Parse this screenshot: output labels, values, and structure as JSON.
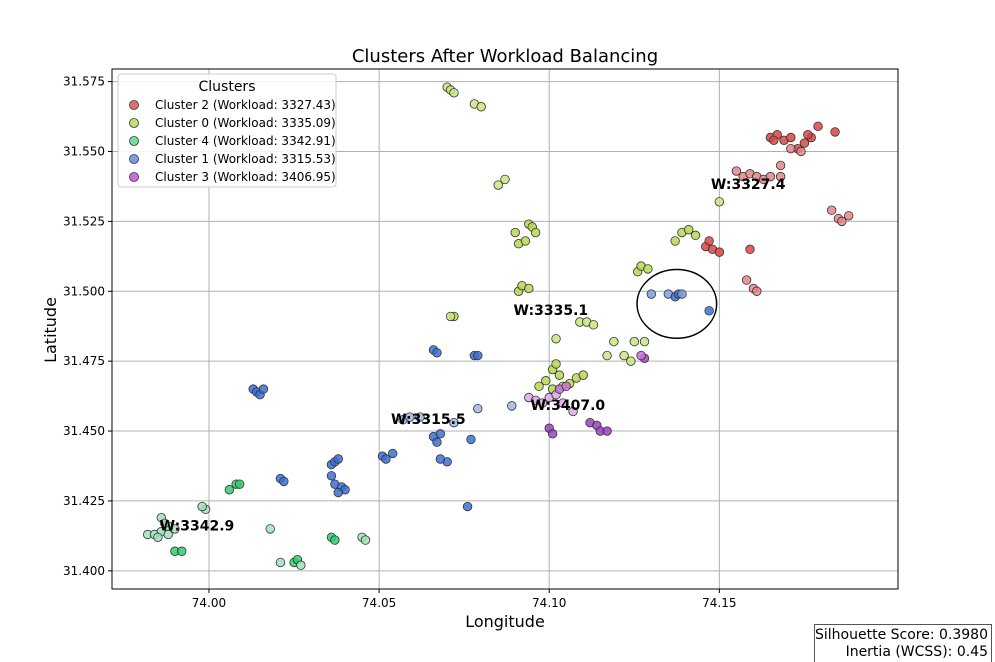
{
  "chart_data": {
    "type": "scatter",
    "title": "Clusters After Workload Balancing",
    "xlabel": "Longitude",
    "ylabel": "Latitude",
    "xlim": [
      73.9715,
      74.2025
    ],
    "ylim": [
      31.3935,
      31.5795
    ],
    "xticks": [
      "74.00",
      "74.05",
      "74.10",
      "74.15"
    ],
    "xtick_values": [
      74.0,
      74.05,
      74.1,
      74.15
    ],
    "yticks": [
      "31.400",
      "31.425",
      "31.450",
      "31.475",
      "31.500",
      "31.525",
      "31.550",
      "31.575"
    ],
    "ytick_values": [
      31.4,
      31.425,
      31.45,
      31.475,
      31.5,
      31.525,
      31.55,
      31.575
    ],
    "grid": true,
    "legend": {
      "title": "Clusters",
      "placement": "upper-left",
      "entries": [
        {
          "label": "Cluster 2 (Workload: 3327.43)",
          "color": "#e07070"
        },
        {
          "label": "Cluster 0 (Workload: 3335.09)",
          "color": "#c2e070"
        },
        {
          "label": "Cluster 4 (Workload: 3342.91)",
          "color": "#70e0a0"
        },
        {
          "label": "Cluster 1 (Workload: 3315.53)",
          "color": "#7a9ee0"
        },
        {
          "label": "Cluster 3 (Workload: 3406.95)",
          "color": "#cc70dd"
        }
      ]
    },
    "series": [
      {
        "name": "Cluster 2 (Workload: 3327.43)",
        "points": [
          [
            74.165,
            31.555,
            "#d94444"
          ],
          [
            74.167,
            31.556,
            "#d94444"
          ],
          [
            74.169,
            31.554,
            "#d94444"
          ],
          [
            74.171,
            31.555,
            "#d94444"
          ],
          [
            74.173,
            31.551,
            "#d94444"
          ],
          [
            74.175,
            31.553,
            "#d94444"
          ],
          [
            74.177,
            31.555,
            "#d94444"
          ],
          [
            74.179,
            31.559,
            "#d94444"
          ],
          [
            74.184,
            31.557,
            "#d94444"
          ],
          [
            74.176,
            31.556,
            "#d94444"
          ],
          [
            74.166,
            31.554,
            "#d94444"
          ],
          [
            74.171,
            31.551,
            "#e58585"
          ],
          [
            74.174,
            31.55,
            "#e58585"
          ],
          [
            74.168,
            31.541,
            "#e58585"
          ],
          [
            74.155,
            31.543,
            "#e58585"
          ],
          [
            74.157,
            31.541,
            "#e58585"
          ],
          [
            74.159,
            31.542,
            "#e58585"
          ],
          [
            74.161,
            31.541,
            "#e58585"
          ],
          [
            74.163,
            31.54,
            "#e58585"
          ],
          [
            74.165,
            31.541,
            "#e58585"
          ],
          [
            74.168,
            31.545,
            "#e58585"
          ],
          [
            74.183,
            31.529,
            "#e58585"
          ],
          [
            74.185,
            31.526,
            "#e58585"
          ],
          [
            74.186,
            31.525,
            "#e58585"
          ],
          [
            74.188,
            31.527,
            "#e58585"
          ],
          [
            74.146,
            31.516,
            "#d94444"
          ],
          [
            74.147,
            31.518,
            "#d94444"
          ],
          [
            74.148,
            31.515,
            "#d94444"
          ],
          [
            74.15,
            31.514,
            "#d94444"
          ],
          [
            74.159,
            31.515,
            "#d94444"
          ],
          [
            74.158,
            31.504,
            "#e58585"
          ],
          [
            74.16,
            31.501,
            "#e58585"
          ],
          [
            74.161,
            31.5,
            "#e58585"
          ]
        ]
      },
      {
        "name": "Cluster 0 (Workload: 3335.09)",
        "points": [
          [
            74.07,
            31.573,
            "#c8e680"
          ],
          [
            74.071,
            31.572,
            "#c8e680"
          ],
          [
            74.072,
            31.571,
            "#c8e680"
          ],
          [
            74.078,
            31.567,
            "#c8e680"
          ],
          [
            74.08,
            31.566,
            "#c8e680"
          ],
          [
            74.085,
            31.538,
            "#c8e680"
          ],
          [
            74.087,
            31.54,
            "#c8e680"
          ],
          [
            74.09,
            31.521,
            "#b5d84e"
          ],
          [
            74.091,
            31.517,
            "#b5d84e"
          ],
          [
            74.093,
            31.518,
            "#b5d84e"
          ],
          [
            74.094,
            31.524,
            "#b5d84e"
          ],
          [
            74.095,
            31.523,
            "#b5d84e"
          ],
          [
            74.096,
            31.521,
            "#b5d84e"
          ],
          [
            74.091,
            31.5,
            "#b5d84e"
          ],
          [
            74.092,
            31.502,
            "#b5d84e"
          ],
          [
            74.094,
            31.501,
            "#b5d84e"
          ],
          [
            74.072,
            31.491,
            "#b5d84e"
          ],
          [
            74.071,
            31.491,
            "#c8e680"
          ],
          [
            74.109,
            31.489,
            "#c8e680"
          ],
          [
            74.111,
            31.489,
            "#c8e680"
          ],
          [
            74.113,
            31.488,
            "#c8e680"
          ],
          [
            74.102,
            31.483,
            "#c8e680"
          ],
          [
            74.117,
            31.477,
            "#c8e680"
          ],
          [
            74.119,
            31.482,
            "#c8e680"
          ],
          [
            74.122,
            31.477,
            "#c8e680"
          ],
          [
            74.124,
            31.475,
            "#c8e680"
          ],
          [
            74.125,
            31.482,
            "#c8e680"
          ],
          [
            74.128,
            31.482,
            "#c8e680"
          ],
          [
            74.097,
            31.466,
            "#b5d84e"
          ],
          [
            74.099,
            31.468,
            "#b5d84e"
          ],
          [
            74.101,
            31.472,
            "#b5d84e"
          ],
          [
            74.102,
            31.474,
            "#b5d84e"
          ],
          [
            74.103,
            31.47,
            "#b5d84e"
          ],
          [
            74.104,
            31.466,
            "#b5d84e"
          ],
          [
            74.106,
            31.467,
            "#b5d84e"
          ],
          [
            74.108,
            31.469,
            "#b5d84e"
          ],
          [
            74.11,
            31.47,
            "#b5d84e"
          ],
          [
            74.101,
            31.465,
            "#b5d84e"
          ],
          [
            74.126,
            31.507,
            "#b5d84e"
          ],
          [
            74.127,
            31.509,
            "#b5d84e"
          ],
          [
            74.129,
            31.508,
            "#b5d84e"
          ],
          [
            74.137,
            31.518,
            "#b5d84e"
          ],
          [
            74.139,
            31.521,
            "#b5d84e"
          ],
          [
            74.141,
            31.522,
            "#b5d84e"
          ],
          [
            74.143,
            31.52,
            "#b5d84e"
          ],
          [
            74.15,
            31.532,
            "#c8e680"
          ]
        ]
      },
      {
        "name": "Cluster 4 (Workload: 3342.91)",
        "points": [
          [
            73.982,
            31.413,
            "#9fe0bb"
          ],
          [
            73.984,
            31.413,
            "#9fe0bb"
          ],
          [
            73.986,
            31.414,
            "#9fe0bb"
          ],
          [
            73.988,
            31.413,
            "#9fe0bb"
          ],
          [
            73.99,
            31.415,
            "#9fe0bb"
          ],
          [
            73.986,
            31.419,
            "#9fe0bb"
          ],
          [
            73.988,
            31.416,
            "#9fe0bb"
          ],
          [
            73.985,
            31.412,
            "#9fe0bb"
          ],
          [
            73.987,
            31.417,
            "#9fe0bb"
          ],
          [
            73.99,
            31.407,
            "#2ecc71"
          ],
          [
            73.992,
            31.407,
            "#2ecc71"
          ],
          [
            73.999,
            31.422,
            "#9fe0bb"
          ],
          [
            73.998,
            31.423,
            "#9fe0bb"
          ],
          [
            74.006,
            31.429,
            "#2ecc71"
          ],
          [
            74.008,
            31.431,
            "#2ecc71"
          ],
          [
            74.009,
            31.431,
            "#2ecc71"
          ],
          [
            74.018,
            31.415,
            "#9fe0bb"
          ],
          [
            74.021,
            31.403,
            "#9fe0bb"
          ],
          [
            74.025,
            31.403,
            "#2ecc71"
          ],
          [
            74.026,
            31.404,
            "#2ecc71"
          ],
          [
            74.027,
            31.402,
            "#9fe0bb"
          ],
          [
            74.036,
            31.412,
            "#2ecc71"
          ],
          [
            74.037,
            31.411,
            "#2ecc71"
          ],
          [
            74.045,
            31.412,
            "#9fe0bb"
          ],
          [
            74.046,
            31.411,
            "#9fe0bb"
          ]
        ]
      },
      {
        "name": "Cluster 1 (Workload: 3315.53)",
        "points": [
          [
            74.013,
            31.465,
            "#3b6fd4"
          ],
          [
            74.014,
            31.464,
            "#3b6fd4"
          ],
          [
            74.015,
            31.463,
            "#3b6fd4"
          ],
          [
            74.016,
            31.465,
            "#3b6fd4"
          ],
          [
            74.021,
            31.433,
            "#3b6fd4"
          ],
          [
            74.022,
            31.432,
            "#3b6fd4"
          ],
          [
            74.036,
            31.438,
            "#3b6fd4"
          ],
          [
            74.037,
            31.439,
            "#3b6fd4"
          ],
          [
            74.038,
            31.44,
            "#3b6fd4"
          ],
          [
            74.036,
            31.434,
            "#3b6fd4"
          ],
          [
            74.037,
            31.431,
            "#3b6fd4"
          ],
          [
            74.039,
            31.43,
            "#3b6fd4"
          ],
          [
            74.04,
            31.429,
            "#3b6fd4"
          ],
          [
            74.038,
            31.428,
            "#3b6fd4"
          ],
          [
            74.051,
            31.441,
            "#3b6fd4"
          ],
          [
            74.052,
            31.44,
            "#3b6fd4"
          ],
          [
            74.054,
            31.442,
            "#3b6fd4"
          ],
          [
            74.066,
            31.479,
            "#3b6fd4"
          ],
          [
            74.067,
            31.478,
            "#3b6fd4"
          ],
          [
            74.078,
            31.477,
            "#3b6fd4"
          ],
          [
            74.079,
            31.477,
            "#3b6fd4"
          ],
          [
            74.057,
            31.454,
            "#9db7ea"
          ],
          [
            74.059,
            31.455,
            "#9db7ea"
          ],
          [
            74.062,
            31.455,
            "#9db7ea"
          ],
          [
            74.066,
            31.448,
            "#3b6fd4"
          ],
          [
            74.067,
            31.446,
            "#3b6fd4"
          ],
          [
            74.068,
            31.449,
            "#3b6fd4"
          ],
          [
            74.07,
            31.439,
            "#3b6fd4"
          ],
          [
            74.068,
            31.44,
            "#3b6fd4"
          ],
          [
            74.072,
            31.453,
            "#9db7ea"
          ],
          [
            74.077,
            31.447,
            "#3b6fd4"
          ],
          [
            74.076,
            31.423,
            "#3b6fd4"
          ],
          [
            74.079,
            31.458,
            "#9db7ea"
          ],
          [
            74.089,
            31.459,
            "#9db7ea"
          ],
          [
            74.13,
            31.499,
            "#7a9ee0"
          ],
          [
            74.135,
            31.499,
            "#7a9ee0"
          ],
          [
            74.137,
            31.498,
            "#3b6fd4"
          ],
          [
            74.138,
            31.499,
            "#3b6fd4"
          ],
          [
            74.139,
            31.499,
            "#7a9ee0"
          ],
          [
            74.147,
            31.493,
            "#3b6fd4"
          ]
        ]
      },
      {
        "name": "Cluster 3 (Workload: 3406.95)",
        "points": [
          [
            74.094,
            31.462,
            "#d9a8e6"
          ],
          [
            74.096,
            31.461,
            "#d9a8e6"
          ],
          [
            74.098,
            31.46,
            "#d9a8e6"
          ],
          [
            74.1,
            31.462,
            "#d9a8e6"
          ],
          [
            74.102,
            31.463,
            "#d9a8e6"
          ],
          [
            74.104,
            31.46,
            "#d9a8e6"
          ],
          [
            74.103,
            31.465,
            "#cc70dd"
          ],
          [
            74.105,
            31.466,
            "#cc70dd"
          ],
          [
            74.107,
            31.457,
            "#d9a8e6"
          ],
          [
            74.1,
            31.451,
            "#9b3fbf"
          ],
          [
            74.101,
            31.449,
            "#9b3fbf"
          ],
          [
            74.112,
            31.453,
            "#9b3fbf"
          ],
          [
            74.114,
            31.452,
            "#9b3fbf"
          ],
          [
            74.115,
            31.45,
            "#9b3fbf"
          ],
          [
            74.117,
            31.45,
            "#9b3fbf"
          ],
          [
            74.128,
            31.476,
            "#9b3fbf"
          ],
          [
            74.127,
            31.477,
            "#cc70dd"
          ]
        ]
      }
    ],
    "annotations": [
      {
        "text": "W:3327.4",
        "x": 74.1475,
        "y": 31.5365
      },
      {
        "text": "W:3335.1",
        "x": 74.0895,
        "y": 31.4915
      },
      {
        "text": "W:3315.5",
        "x": 74.0535,
        "y": 31.4525
      },
      {
        "text": "W:3407.0",
        "x": 74.0945,
        "y": 31.4575
      },
      {
        "text": "W:3342.9",
        "x": 73.9855,
        "y": 31.4145
      }
    ],
    "highlight_circle": {
      "x": 74.1375,
      "y": 31.4955,
      "rx_data": 0.0117,
      "ry_data": 0.0123
    }
  },
  "score_box": {
    "silhouette": "Silhouette Score: 0.3980",
    "inertia": "Inertia (WCSS): 0.45"
  }
}
